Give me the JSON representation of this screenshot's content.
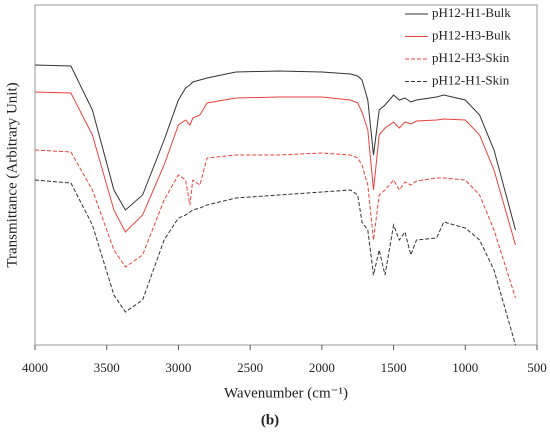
{
  "chart_data": {
    "type": "line",
    "xlabel": "Wavenumber (cm⁻¹)",
    "ylabel": "Transmittance (Arbitrary Unit)",
    "caption": "(b)",
    "xlim": [
      4000,
      500
    ],
    "xticks": [
      4000,
      3500,
      3000,
      2500,
      2000,
      1500,
      1000,
      500
    ],
    "ylim": [
      0,
      340
    ],
    "x": [
      4000,
      3750,
      3600,
      3450,
      3370,
      3250,
      3100,
      3000,
      2950,
      2920,
      2900,
      2850,
      2800,
      2600,
      2300,
      2000,
      1800,
      1750,
      1720,
      1680,
      1640,
      1600,
      1560,
      1500,
      1460,
      1420,
      1380,
      1340,
      1200,
      1150,
      1000,
      900,
      800,
      650
    ],
    "series": [
      {
        "name": "pH12-H1-Bulk",
        "color": "#333333",
        "dash": false,
        "values": [
          280,
          279,
          235,
          155,
          135,
          150,
          205,
          245,
          257,
          260,
          263,
          265,
          267,
          273,
          274,
          273,
          271,
          269,
          265,
          245,
          190,
          235,
          240,
          250,
          245,
          247,
          243,
          245,
          248,
          250,
          245,
          230,
          195,
          115
        ]
      },
      {
        "name": "pH12-H3-Bulk",
        "color": "#e8423c",
        "dash": false,
        "values": [
          253,
          252,
          210,
          135,
          113,
          130,
          180,
          220,
          225,
          220,
          227,
          230,
          242,
          247,
          248,
          248,
          245,
          242,
          233,
          215,
          155,
          210,
          217,
          223,
          217,
          223,
          221,
          224,
          225,
          226,
          225,
          210,
          175,
          100
        ]
      },
      {
        "name": "pH12-H3-Skin",
        "color": "#e8423c",
        "dash": true,
        "values": [
          195,
          193,
          155,
          95,
          78,
          90,
          145,
          170,
          165,
          140,
          165,
          160,
          187,
          190,
          190,
          192,
          190,
          187,
          180,
          160,
          105,
          150,
          155,
          165,
          155,
          163,
          160,
          164,
          167,
          167,
          165,
          150,
          115,
          47
        ]
      },
      {
        "name": "pH12-H1-Skin",
        "color": "#333333",
        "dash": true,
        "values": [
          165,
          162,
          120,
          50,
          33,
          45,
          105,
          127,
          130,
          133,
          135,
          137,
          140,
          147,
          150,
          153,
          155,
          150,
          123,
          115,
          70,
          95,
          70,
          120,
          105,
          113,
          90,
          105,
          107,
          123,
          117,
          105,
          75,
          0
        ]
      }
    ],
    "legend": "upper right"
  }
}
